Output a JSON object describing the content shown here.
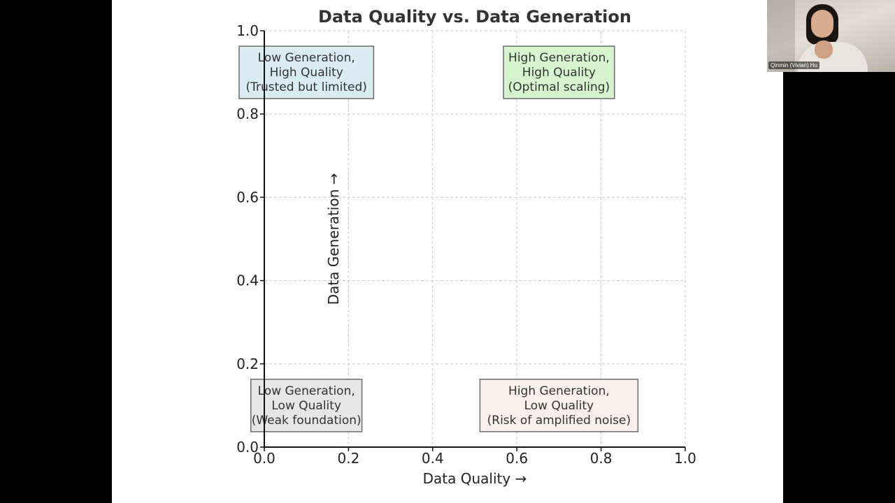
{
  "chart_data": {
    "type": "scatter",
    "title": "Data Quality vs. Data Generation",
    "xlabel": "Data Quality →",
    "ylabel": "Data Generation →",
    "xlim": [
      0,
      1
    ],
    "ylim": [
      0,
      1
    ],
    "xticks": [
      "0.0",
      "0.2",
      "0.4",
      "0.6",
      "0.8",
      "1.0"
    ],
    "yticks": [
      "0.0",
      "0.2",
      "0.4",
      "0.6",
      "0.8",
      "1.0"
    ],
    "grid": true,
    "annotations": [
      {
        "x": 0.1,
        "y": 0.9,
        "lines": [
          "Low Generation,",
          "High Quality",
          "(Trusted but limited)"
        ],
        "facecolor": "#d9ebf3"
      },
      {
        "x": 0.7,
        "y": 0.9,
        "lines": [
          "High Generation,",
          "High Quality",
          "(Optimal scaling)"
        ],
        "facecolor": "#d6f5cf"
      },
      {
        "x": 0.1,
        "y": 0.1,
        "lines": [
          "Low Generation,",
          "Low Quality",
          "(Weak foundation)"
        ],
        "facecolor": "#e6e6e6"
      },
      {
        "x": 0.7,
        "y": 0.1,
        "lines": [
          "High Generation,",
          "Low Quality",
          "(Risk of amplified noise)"
        ],
        "facecolor": "#fbf0eb"
      }
    ]
  },
  "video": {
    "participant_name": "Qinmin (Vivian) Hu"
  }
}
